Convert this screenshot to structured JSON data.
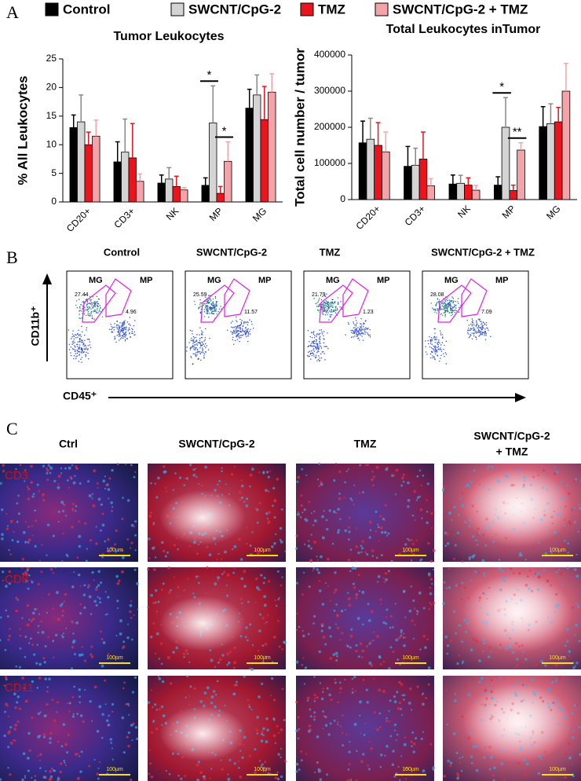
{
  "legend_title": null,
  "panel_labels": [
    "A",
    "B",
    "C"
  ],
  "chart_data": [
    {
      "type": "bar",
      "title": "Tumor Leukocytes",
      "ylabel": "% All Leukocytes",
      "categories": [
        "CD20+",
        "CD3+",
        "NK",
        "MP",
        "MG"
      ],
      "ylim": [
        0,
        25
      ],
      "yticks": [
        0,
        5,
        10,
        15,
        20,
        25
      ],
      "series": [
        {
          "name": "Control",
          "color": "#000000",
          "values": [
            13,
            7,
            3.3,
            2.9,
            16.4
          ],
          "errors": [
            2.2,
            3.5,
            1.4,
            1.3,
            3.3
          ]
        },
        {
          "name": "SWCNT/CpG-2",
          "color": "#d4d4d4",
          "values": [
            14,
            8.7,
            4,
            13.8,
            18.7
          ],
          "errors": [
            4.7,
            5.8,
            2,
            6.5,
            3.5
          ]
        },
        {
          "name": "TMZ",
          "color": "#e8141e",
          "values": [
            10,
            7.7,
            2.7,
            1.5,
            14.4
          ],
          "errors": [
            2.2,
            6,
            1.8,
            1.2,
            5.8
          ]
        },
        {
          "name": "SWCNT/CpG-2 + TMZ",
          "color": "#f4a3a8",
          "values": [
            11.5,
            3.6,
            2.1,
            7.1,
            19.2
          ],
          "errors": [
            2.8,
            1.3,
            0.4,
            3.4,
            3.2
          ]
        }
      ],
      "annotations": [
        "*",
        "*"
      ]
    },
    {
      "type": "bar",
      "title": "Total Leukocytes inTumor",
      "ylabel": "Total cell number / tumor",
      "categories": [
        "CD20+",
        "CD3+",
        "NK",
        "MP",
        "MG"
      ],
      "ylim": [
        0,
        400000
      ],
      "yticks": [
        0,
        100000,
        200000,
        300000,
        400000
      ],
      "series": [
        {
          "color": "#000000",
          "values": [
            157000,
            92000,
            43000,
            40000,
            202000
          ],
          "errors": [
            60000,
            55000,
            25000,
            23000,
            55000
          ]
        },
        {
          "color": "#d4d4d4",
          "values": [
            167000,
            95000,
            45000,
            200000,
            210000
          ],
          "errors": [
            58000,
            47000,
            22000,
            82000,
            55000
          ]
        },
        {
          "color": "#e8141e",
          "values": [
            150000,
            112000,
            40000,
            25000,
            215000
          ],
          "errors": [
            63000,
            75000,
            20000,
            15000,
            40000
          ]
        },
        {
          "color": "#f4a3a8",
          "values": [
            132000,
            38000,
            26000,
            137000,
            300000
          ],
          "errors": [
            55000,
            20000,
            13000,
            20000,
            77000
          ]
        }
      ],
      "annotations": [
        "*",
        "**"
      ]
    }
  ],
  "flow": {
    "titles": [
      "Control",
      "SWCNT/CpG-2",
      "TMZ",
      "SWCNT/CpG-2 + TMZ"
    ],
    "gate_labels": [
      "MG",
      "MP"
    ],
    "mg_values": [
      "27.44",
      "25.59",
      "21.79",
      "28.08"
    ],
    "mp_values": [
      "4.96",
      "11.57",
      "1.23",
      "7.09"
    ],
    "y_axis": "CD11b⁺",
    "x_axis": "CD45⁺"
  },
  "micro": {
    "columns": [
      "Ctrl",
      "SWCNT/CpG-2",
      "TMZ",
      [
        "SWCNT/CpG-2",
        "+ TMZ"
      ]
    ],
    "rows": [
      "CD3",
      "CD8",
      "CD11"
    ],
    "scale_bar": "100µm"
  }
}
